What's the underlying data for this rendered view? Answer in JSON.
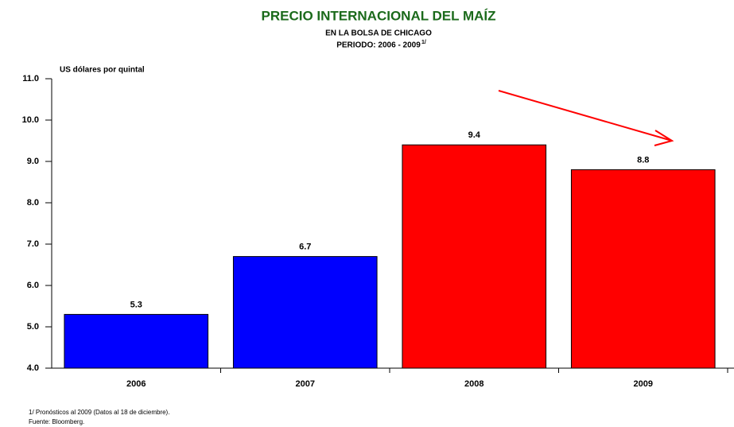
{
  "chart_data": {
    "type": "bar",
    "title": "PRECIO INTERNACIONAL DEL MAÍZ",
    "subtitle": "EN LA BOLSA DE CHICAGO",
    "period": "PERIODO: 2006 - 2009",
    "period_note": "1/",
    "y_label": "US dólares por quintal",
    "categories": [
      "2006",
      "2007",
      "2008",
      "2009"
    ],
    "values": [
      5.3,
      6.7,
      9.4,
      8.8
    ],
    "colors": [
      "#0000ff",
      "#0000ff",
      "#ff0000",
      "#ff0000"
    ],
    "ylim": [
      4,
      11
    ],
    "yticks": [
      {
        "value": 4,
        "label": "4.0"
      },
      {
        "value": 5,
        "label": "5.0"
      },
      {
        "value": 6,
        "label": "6.0"
      },
      {
        "value": 7,
        "label": "7.0"
      },
      {
        "value": 8,
        "label": "8.0"
      },
      {
        "value": 9,
        "label": "9.0"
      },
      {
        "value": 10,
        "label": "10.0"
      },
      {
        "value": 11,
        "label": "11.0"
      }
    ],
    "footnotes": [
      "1/ Pronósticos al  2009 (Datos al 18 de diciembre).",
      "Fuente: Bloomberg."
    ]
  }
}
